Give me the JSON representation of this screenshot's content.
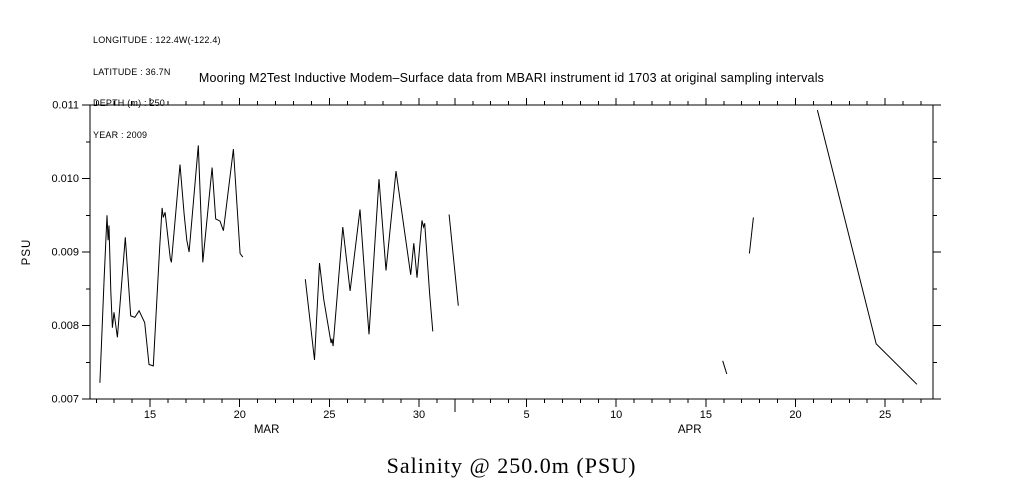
{
  "header": {
    "lines": [
      "LONGITUDE : 122.4W(-122.4)",
      "LATITUDE : 36.7N",
      "DEPTH (m) : 250",
      "YEAR : 2009"
    ]
  },
  "chart_data": {
    "type": "line",
    "title": "Mooring M2Test Inductive Modem–Surface data from MBARI instrument id 1703 at original sampling intervals",
    "caption": "Salinity @ 250.0m (PSU)",
    "ylabel": "PSU",
    "line_color": "#000000",
    "background_color": "#ffffff",
    "grid": false,
    "legend": "none",
    "ylim": [
      0.007,
      0.011
    ],
    "y_major_ticks": [
      {
        "value": 0.007,
        "label": "0.007"
      },
      {
        "value": 0.008,
        "label": "0.008"
      },
      {
        "value": 0.009,
        "label": "0.009"
      },
      {
        "value": 0.01,
        "label": "0.010"
      },
      {
        "value": 0.011,
        "label": "0.011"
      }
    ],
    "y_minor_tick_values": [
      0.0075,
      0.0085,
      0.0095,
      0.0105
    ],
    "x_unit": "day index, Mar 1 2009 = 1 (Apr 1 = 32)",
    "xlim_days": [
      11.65,
      58.67
    ],
    "x_major_ticks": [
      {
        "day": 15,
        "label": "15"
      },
      {
        "day": 20,
        "label": "20"
      },
      {
        "day": 25,
        "label": "25"
      },
      {
        "day": 30,
        "label": "30"
      },
      {
        "day": 36,
        "label": "5"
      },
      {
        "day": 41,
        "label": "10"
      },
      {
        "day": 46,
        "label": "15"
      },
      {
        "day": 51,
        "label": "20"
      },
      {
        "day": 56,
        "label": "25"
      }
    ],
    "x_minor_tick_step_days": 1,
    "month_boundary_day": 32,
    "month_labels": [
      {
        "label": "MAR",
        "day": 21.5
      },
      {
        "label": "APR",
        "day": 45.1
      }
    ],
    "series_name": "Salinity (PSU) at 250.0 m",
    "segments": [
      [
        [
          12.2,
          0.00722
        ],
        [
          12.44,
          0.00866
        ],
        [
          12.6,
          0.0095
        ],
        [
          12.66,
          0.00916
        ],
        [
          12.71,
          0.00936
        ],
        [
          12.81,
          0.00847
        ],
        [
          12.9,
          0.00797
        ],
        [
          12.99,
          0.00818
        ],
        [
          13.18,
          0.00784
        ],
        [
          13.62,
          0.0092
        ],
        [
          13.92,
          0.00813
        ],
        [
          14.15,
          0.00811
        ],
        [
          14.39,
          0.0082
        ],
        [
          14.7,
          0.00804
        ],
        [
          14.94,
          0.00747
        ],
        [
          15.18,
          0.00745
        ],
        [
          15.54,
          0.00907
        ],
        [
          15.67,
          0.0096
        ],
        [
          15.74,
          0.00947
        ],
        [
          15.84,
          0.00954
        ],
        [
          16.13,
          0.00891
        ],
        [
          16.19,
          0.00886
        ],
        [
          16.67,
          0.01019
        ],
        [
          16.9,
          0.00952
        ],
        [
          17.05,
          0.00916
        ],
        [
          17.18,
          0.009
        ],
        [
          17.69,
          0.01045
        ],
        [
          17.94,
          0.00886
        ],
        [
          18.46,
          0.01015
        ],
        [
          18.66,
          0.00945
        ],
        [
          18.9,
          0.00942
        ],
        [
          19.09,
          0.00929
        ],
        [
          19.65,
          0.0104
        ],
        [
          20.02,
          0.00898
        ],
        [
          20.17,
          0.00893
        ]
      ],
      [
        [
          23.66,
          0.00863
        ],
        [
          24.17,
          0.00753
        ],
        [
          24.45,
          0.00885
        ],
        [
          24.69,
          0.00835
        ],
        [
          25.1,
          0.00776
        ],
        [
          25.15,
          0.00782
        ],
        [
          25.21,
          0.00772
        ],
        [
          25.75,
          0.00934
        ],
        [
          26.16,
          0.00847
        ],
        [
          26.71,
          0.00958
        ],
        [
          27.14,
          0.00811
        ],
        [
          27.21,
          0.00788
        ],
        [
          27.77,
          0.00999
        ],
        [
          28.16,
          0.00875
        ],
        [
          28.72,
          0.0101
        ],
        [
          29.54,
          0.00869
        ],
        [
          29.71,
          0.00912
        ],
        [
          29.89,
          0.00865
        ],
        [
          30.17,
          0.00943
        ],
        [
          30.25,
          0.00934
        ],
        [
          30.32,
          0.00939
        ],
        [
          30.6,
          0.00842
        ],
        [
          30.77,
          0.00792
        ]
      ],
      [
        [
          31.68,
          0.00951
        ],
        [
          32.19,
          0.00827
        ]
      ],
      [
        [
          46.94,
          0.00752
        ],
        [
          47.17,
          0.00734
        ]
      ],
      [
        [
          48.43,
          0.00898
        ],
        [
          48.65,
          0.00947
        ]
      ],
      [
        [
          52.22,
          0.01093
        ],
        [
          55.5,
          0.00775
        ],
        [
          57.77,
          0.0072
        ]
      ]
    ]
  }
}
